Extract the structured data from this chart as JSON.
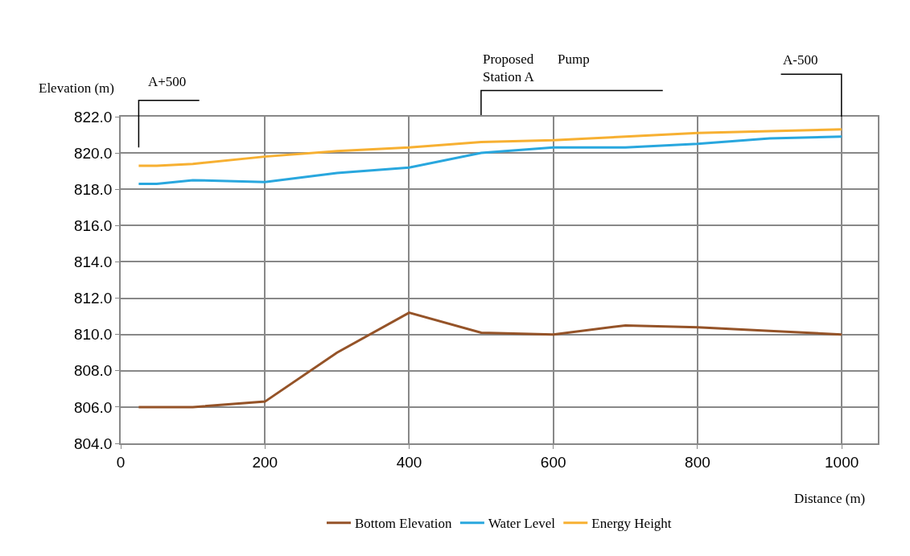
{
  "chart_data": {
    "type": "line",
    "xlabel": "Distance (m)",
    "ylabel": "Elevation (m)",
    "x": [
      25,
      50,
      100,
      200,
      300,
      400,
      500,
      600,
      700,
      800,
      900,
      1000
    ],
    "series": [
      {
        "name": "Bottom Elevation",
        "color": "#955328",
        "values": [
          806.0,
          806.0,
          806.0,
          806.3,
          809.0,
          811.2,
          810.1,
          810.0,
          810.5,
          810.4,
          810.2,
          810.0
        ]
      },
      {
        "name": "Water Level",
        "color": "#29a7de",
        "values": [
          818.3,
          818.3,
          818.5,
          818.4,
          818.9,
          819.2,
          820.0,
          820.3,
          820.3,
          820.5,
          820.8,
          820.9
        ]
      },
      {
        "name": "Energy Height",
        "color": "#f7b032",
        "values": [
          819.3,
          819.3,
          819.4,
          819.8,
          820.1,
          820.3,
          820.6,
          820.7,
          820.9,
          821.1,
          821.2,
          821.3
        ]
      }
    ],
    "annotations": [
      "A+500",
      "Proposed       Pump\nStation A",
      "A-500"
    ],
    "xlim": [
      0,
      1050
    ],
    "xticks": [
      0,
      200,
      400,
      600,
      800,
      1000
    ],
    "ylim": [
      804,
      822
    ],
    "yticks": [
      {
        "value": 804,
        "label": "804.0"
      },
      {
        "value": 806,
        "label": "806.0"
      },
      {
        "value": 808,
        "label": "808.0"
      },
      {
        "value": 810,
        "label": "810.0"
      },
      {
        "value": 812,
        "label": "812.0"
      },
      {
        "value": 814,
        "label": "814.0"
      },
      {
        "value": 816,
        "label": "816.0"
      },
      {
        "value": 818,
        "label": "818.0"
      },
      {
        "value": 820,
        "label": "820.0"
      },
      {
        "value": 822,
        "label": "822.0"
      }
    ],
    "grid": true,
    "legend": "bottom",
    "marker": "none",
    "line_style": "solid"
  }
}
